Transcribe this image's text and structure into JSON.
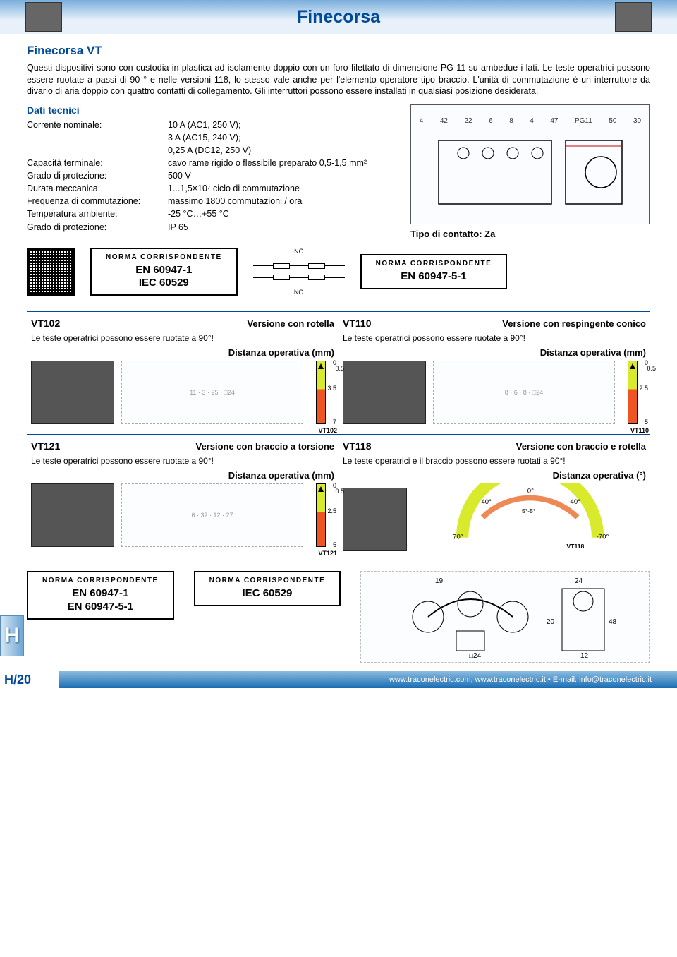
{
  "page": {
    "title": "Finecorsa",
    "section_title": "Finecorsa VT",
    "intro": "Questi dispositivi sono con custodia in plastica ad isolamento doppio con un foro filettato di dimensione PG 11 su ambedue i lati. Le teste operatrici possono essere ruotate a passi di 90 ° e nelle versioni 118, lo stesso vale anche per l'elemento operatore tipo braccio. L'unità di commutazione è un interruttore da divario di aria doppio con quattro contatti di collegamento. Gli interruttori possono essere installati in qualsiasi posizione desiderata.",
    "tech_header": "Dati tecnici",
    "page_number": "H/20",
    "side_tab": "H",
    "footer": "www.traconelectric.com, www.traconelectric.it • E-mail: info@traconelectric.it"
  },
  "specs": [
    {
      "k": "Corrente nominale:",
      "v": "10 A (AC1, 250 V);\n3 A (AC15, 240 V);\n0,25 A (DC12, 250 V)"
    },
    {
      "k": "Capacità terminale:",
      "v": "cavo rame rigido o flessibile preparato  0,5-1,5 mm²"
    },
    {
      "k": "Grado di protezione:",
      "v": "500 V"
    },
    {
      "k": "Durata meccanica:",
      "v": "1...1,5×10⁷ ciclo di commutazione"
    },
    {
      "k": "Frequenza di commutazione:",
      "v": "massimo 1800 commutazioni / ora"
    },
    {
      "k": "Temperatura ambiente:",
      "v": "-25 °C…+55 °C"
    },
    {
      "k": "Grado di protezione:",
      "v": "IP 65"
    }
  ],
  "main_drawing": {
    "dims": [
      "4",
      "42",
      "22",
      "6",
      "8",
      "4",
      "47",
      "PG11",
      "50",
      "30"
    ],
    "contact_type": "Tipo di contatto: Za",
    "nc": "NC",
    "no": "NO"
  },
  "norms": {
    "label": "NORMA CORRISPONDENTE",
    "box1": "EN 60947-1\nIEC 60529",
    "box2": "EN 60947-5-1",
    "footer_box1": "EN 60947-1\nEN 60947-5-1",
    "footer_box2": "IEC 60529"
  },
  "variants": [
    {
      "code": "VT102",
      "title": "Versione con rotella",
      "note": "Le teste operatrici possono essere ruotate a 90°!",
      "dist_label": "Distanza operativa (mm)",
      "draw_dims": [
        "11",
        "3",
        "25",
        "□24"
      ],
      "travel": {
        "t0": "0",
        "mid_label": "0.5",
        "t1": "3.5",
        "t2": "7",
        "code": "VT102"
      }
    },
    {
      "code": "VT110",
      "title": "Versione con respingente conico",
      "note": "Le teste operatrici possono essere ruotate a 90°!",
      "dist_label": "Distanza operativa (mm)",
      "draw_dims": [
        "8",
        "6",
        "8",
        "□24"
      ],
      "travel": {
        "t0": "0",
        "mid_label": "0.5",
        "t1": "2.5",
        "t2": "5",
        "code": "VT110"
      }
    },
    {
      "code": "VT121",
      "title": "Versione con braccio a torsione",
      "note": "Le teste operatrici possono essere ruotate a 90°!",
      "dist_label": "Distanza operativa (mm)",
      "draw_dims": [
        "6",
        "32",
        "12",
        "27"
      ],
      "travel": {
        "t0": "0",
        "mid_label": "0.5",
        "t1": "2.5",
        "t2": "5",
        "code": "VT121"
      }
    },
    {
      "code": "VT118",
      "title": "Versione con braccio e rotella",
      "note": "Le teste operatrici e il braccio possono essere ruotati a 90°!",
      "dist_label": "Distanza operativa (°)",
      "arc": {
        "angles": [
          "0°",
          "40°",
          "-40°",
          "5°-5°",
          "70°",
          "-70°"
        ],
        "code": "VT118"
      },
      "bottom_dims": [
        "19",
        "24",
        "20",
        "48",
        "□24",
        "12"
      ]
    }
  ],
  "colors": {
    "brand": "#004a99",
    "header_grad_top": "#7aaedb",
    "travel_yellow": "#d9e92b",
    "travel_red": "#e52"
  }
}
